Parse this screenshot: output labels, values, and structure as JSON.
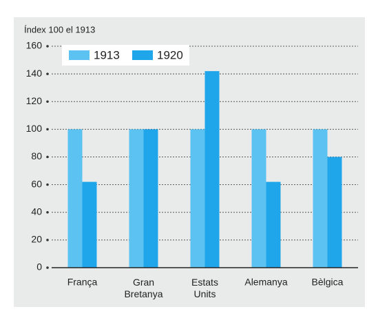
{
  "chart_data": {
    "type": "bar",
    "y_axis_label": "Índex 100 el 1913",
    "categories": [
      "França",
      "Gran Bretanya",
      "Estats Units",
      "Alemanya",
      "Bèlgica"
    ],
    "series": [
      {
        "name": "1913",
        "color": "#5cc2f2",
        "values": [
          100,
          100,
          100,
          100,
          100
        ]
      },
      {
        "name": "1920",
        "color": "#1ea5ea",
        "values": [
          62,
          100,
          142,
          62,
          80
        ]
      }
    ],
    "ylim": [
      0,
      160
    ],
    "yticks": [
      0,
      20,
      40,
      60,
      80,
      100,
      120,
      140,
      160
    ],
    "grid": true,
    "legend": "upper left"
  }
}
